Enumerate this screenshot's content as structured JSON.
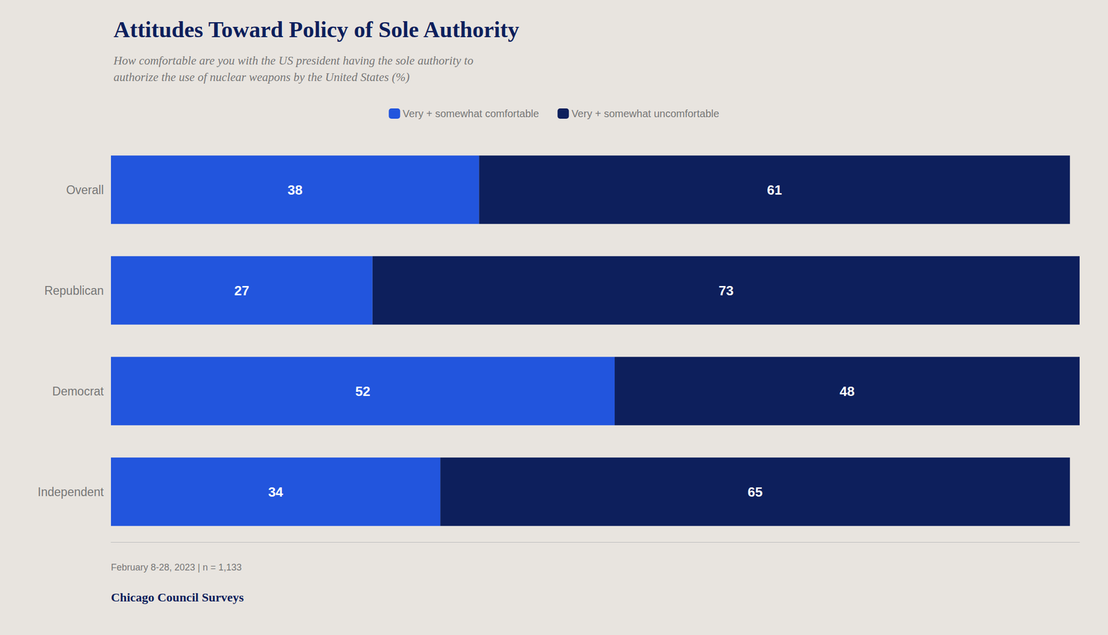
{
  "chart_data": {
    "type": "bar",
    "orientation": "horizontal",
    "stacked": true,
    "title": "Attitudes Toward Policy of Sole Authority",
    "subtitle": "How comfortable are you with the US president having the sole authority to\nauthorize the use of nuclear weapons by the United States (%)",
    "categories": [
      "Overall",
      "Republican",
      "Democrat",
      "Independent"
    ],
    "series": [
      {
        "name": "Very + somewhat comfortable",
        "color": "#2255DD",
        "values": [
          38,
          27,
          52,
          34
        ]
      },
      {
        "name": "Very + somewhat uncomfortable",
        "color": "#0D1F5C",
        "values": [
          61,
          73,
          48,
          65
        ]
      }
    ],
    "xlim": [
      0,
      100
    ],
    "tick_labels": "y",
    "data_labels": true,
    "grid": false,
    "legend": "top",
    "annotations": [
      "February 8-28, 2023 | n = 1,133",
      "Chicago Council Surveys"
    ]
  }
}
